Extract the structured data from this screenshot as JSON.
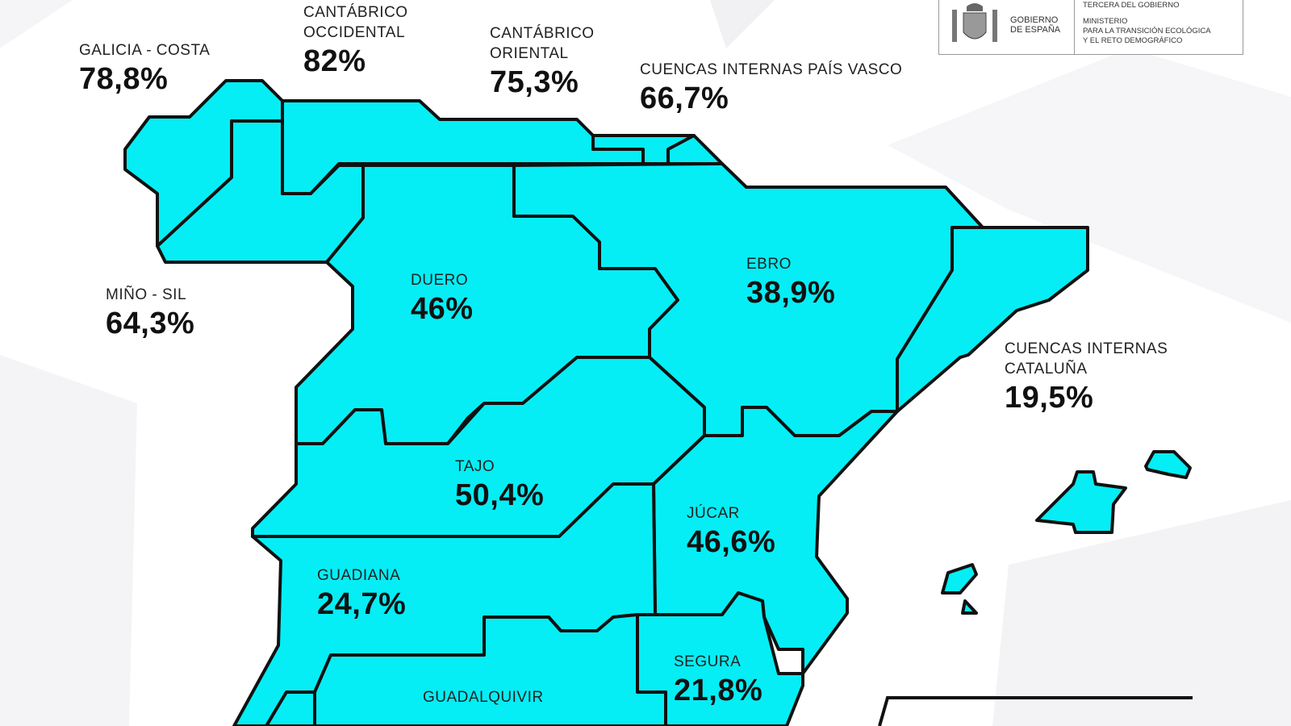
{
  "colors": {
    "region_fill": "#05eef5",
    "border": "#111111",
    "background": "#ffffff"
  },
  "logo": {
    "gobierno": "GOBIERNO",
    "espana": "DE ESPAÑA",
    "vicepresidencia": "TERCERA DEL GOBIERNO",
    "ministerio": "MINISTERIO",
    "ministerio_line2": "PARA LA TRANSICIÓN ECOLÓGICA",
    "ministerio_line3": "Y EL RETO DEMOGRÁFICO"
  },
  "basins": [
    {
      "name": "GALICIA - COSTA",
      "value": "78,8%"
    },
    {
      "name": "CANTÁBRICO OCCIDENTAL",
      "value": "82%"
    },
    {
      "name": "CANTÁBRICO ORIENTAL",
      "value": "75,3%"
    },
    {
      "name": "CUENCAS INTERNAS PAÍS VASCO",
      "value": "66,7%"
    },
    {
      "name": "MIÑO - SIL",
      "value": "64,3%"
    },
    {
      "name": "DUERO",
      "value": "46%"
    },
    {
      "name": "EBRO",
      "value": "38,9%"
    },
    {
      "name": "CUENCAS INTERNAS CATALUÑA",
      "value": "19,5%"
    },
    {
      "name": "TAJO",
      "value": "50,4%"
    },
    {
      "name": "JÚCAR",
      "value": "46,6%"
    },
    {
      "name": "GUADIANA",
      "value": "24,7%"
    },
    {
      "name": "SEGURA",
      "value": "21,8%"
    },
    {
      "name": "GUADALQUIVIR",
      "value": ""
    }
  ]
}
